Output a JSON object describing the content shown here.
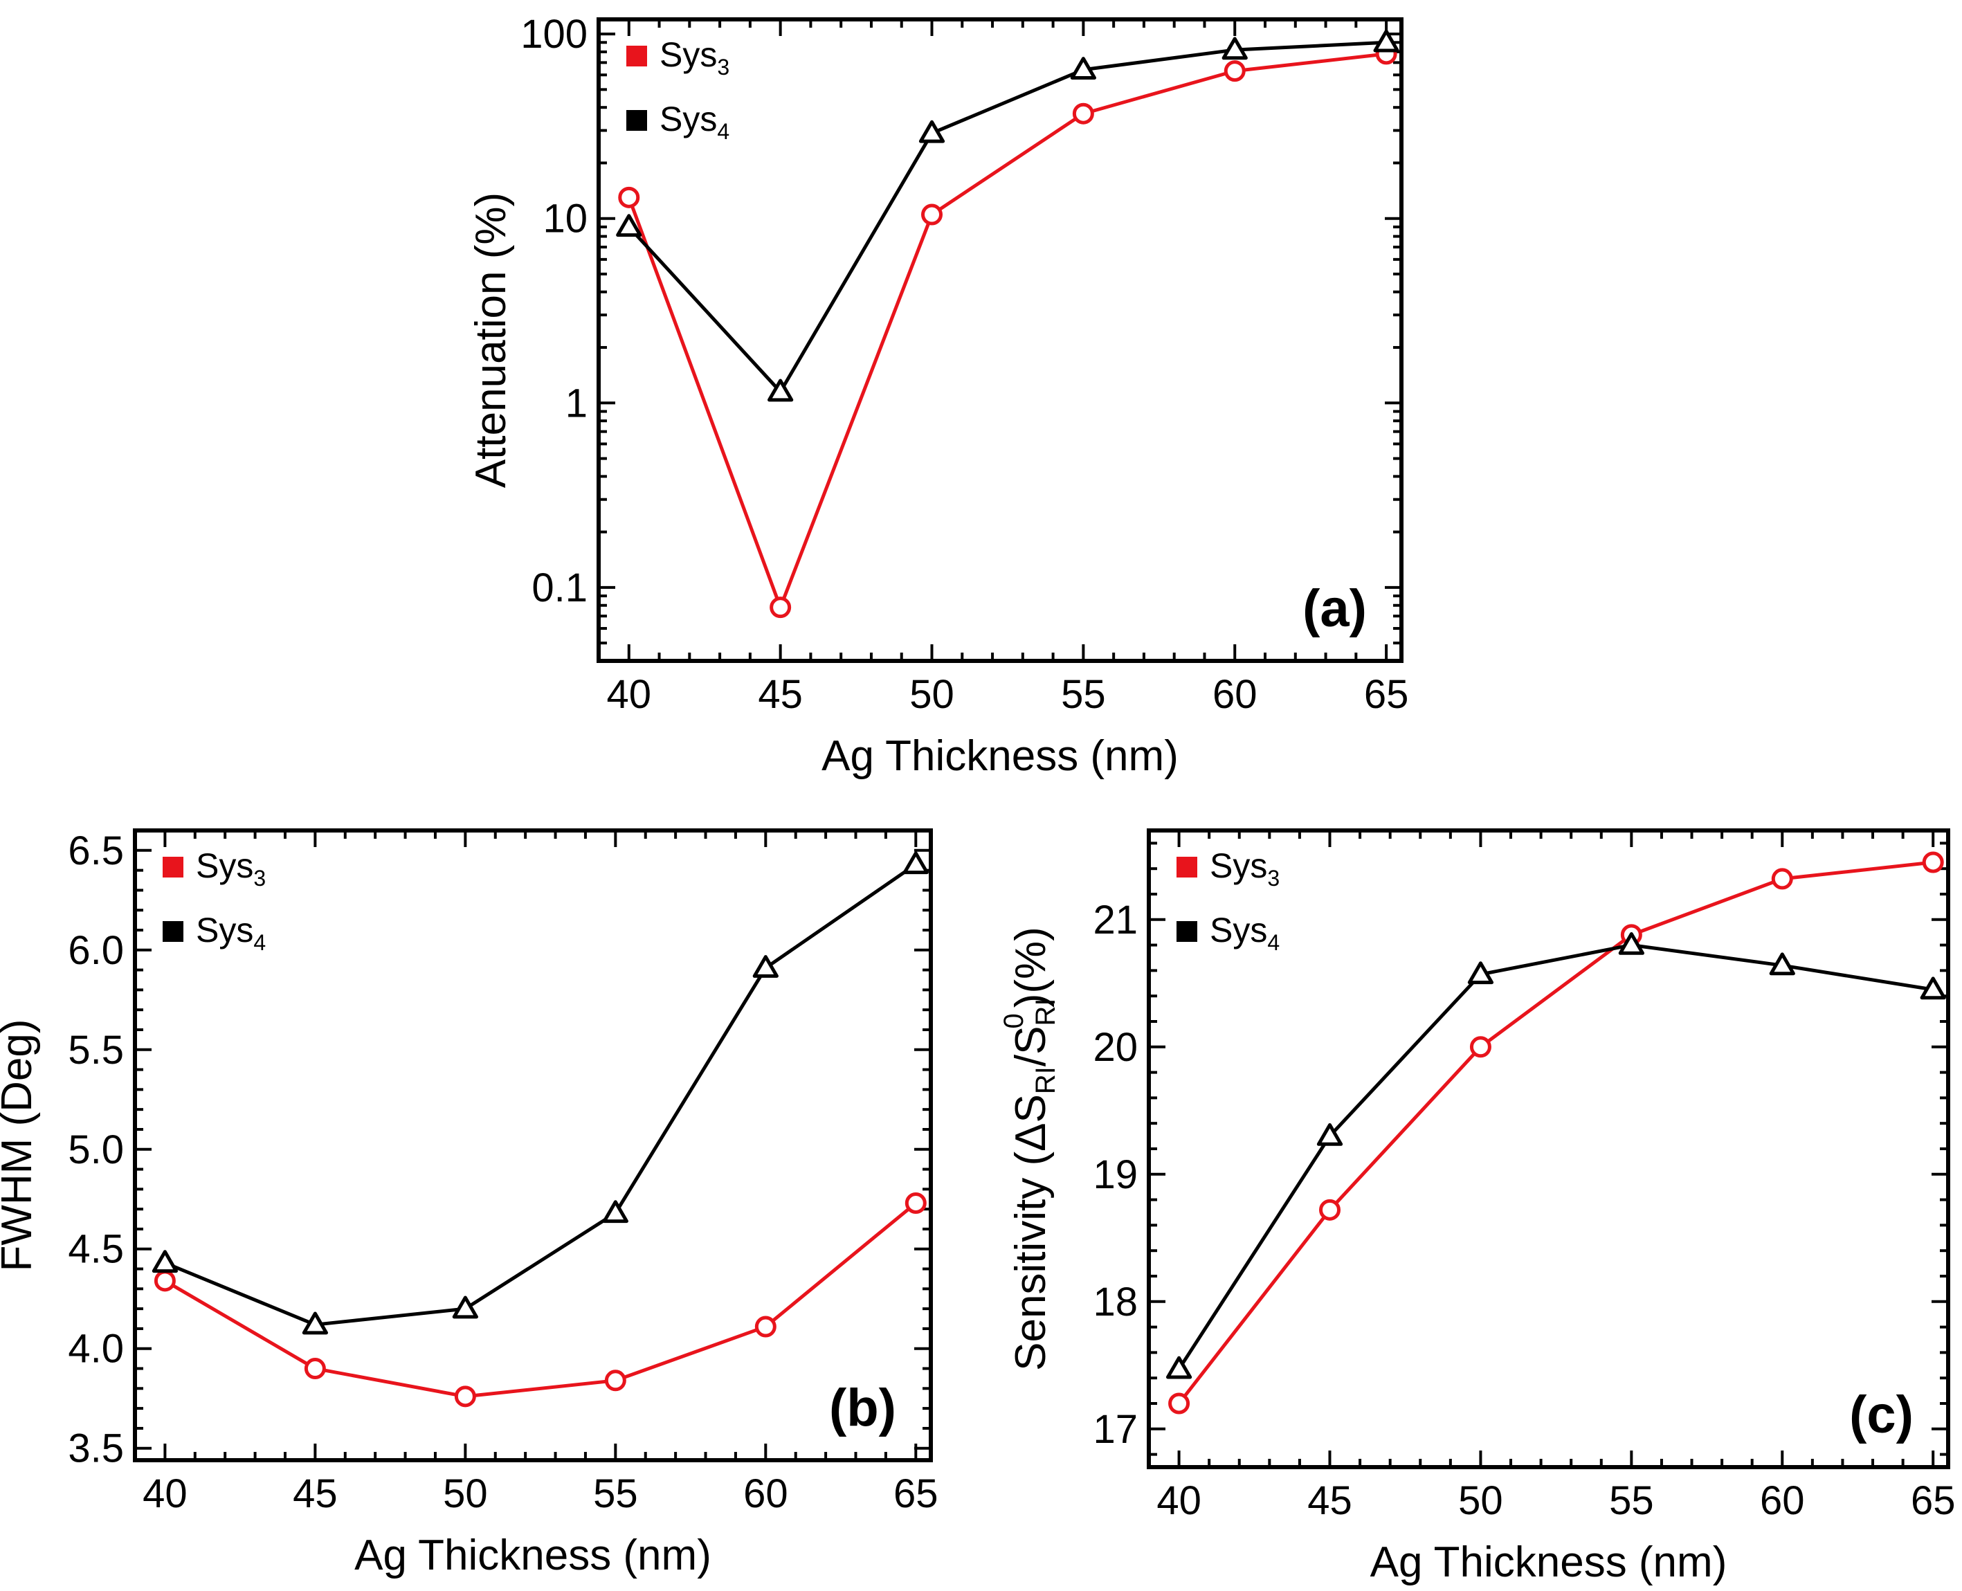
{
  "chart_data": [
    {
      "panel": "(a)",
      "type": "line",
      "xlabel": "Ag Thickness (nm)",
      "ylabel": "Attenuation (%)",
      "yscale": "log",
      "x": [
        40,
        45,
        50,
        55,
        60,
        65
      ],
      "xlim": [
        39,
        65.5
      ],
      "ylim": [
        0.04,
        120
      ],
      "xticks": [
        "40",
        "45",
        "50",
        "55",
        "60",
        "65"
      ],
      "yticks": [
        {
          "value": 0.1,
          "label": "0.1"
        },
        {
          "value": 1,
          "label": "1"
        },
        {
          "value": 10,
          "label": "10"
        },
        {
          "value": 100,
          "label": "100"
        }
      ],
      "legend_position": "top-left",
      "series": [
        {
          "name": "Sys",
          "sub": "3",
          "color": "#e8141c",
          "marker": "circle",
          "values": [
            13,
            0.078,
            10.5,
            37,
            63,
            78
          ]
        },
        {
          "name": "Sys",
          "sub": "4",
          "color": "#000000",
          "marker": "triangle",
          "values": [
            9,
            1.15,
            29,
            64,
            82,
            90
          ]
        }
      ]
    },
    {
      "panel": "(b)",
      "type": "line",
      "xlabel": "Ag Thickness (nm)",
      "ylabel": "FWHM (Deg)",
      "yscale": "linear",
      "x": [
        40,
        45,
        50,
        55,
        60,
        65
      ],
      "xlim": [
        39,
        65.5
      ],
      "ylim": [
        3.44,
        6.6
      ],
      "xticks": [
        "40",
        "45",
        "50",
        "55",
        "60",
        "65"
      ],
      "yticks": [
        {
          "value": 3.5,
          "label": "3.5"
        },
        {
          "value": 4.0,
          "label": "4.0"
        },
        {
          "value": 4.5,
          "label": "4.5"
        },
        {
          "value": 5.0,
          "label": "5.0"
        },
        {
          "value": 5.5,
          "label": "5.5"
        },
        {
          "value": 6.0,
          "label": "6.0"
        },
        {
          "value": 6.5,
          "label": "6.5"
        }
      ],
      "legend_position": "top-left",
      "series": [
        {
          "name": "Sys",
          "sub": "3",
          "color": "#e8141c",
          "marker": "circle",
          "values": [
            4.34,
            3.9,
            3.76,
            3.84,
            4.11,
            4.73
          ]
        },
        {
          "name": "Sys",
          "sub": "4",
          "color": "#000000",
          "marker": "triangle",
          "values": [
            4.43,
            4.12,
            4.2,
            4.68,
            5.91,
            6.43
          ]
        }
      ]
    },
    {
      "panel": "(c)",
      "type": "line",
      "xlabel": "Ag Thickness (nm)",
      "ylabel": "Sensitivity (ΔS",
      "ylabel_parts": [
        "Sensitivity (ΔS",
        "RI",
        "/S",
        "RI",
        "0",
        ")(%)"
      ],
      "yscale": "linear",
      "x": [
        40,
        45,
        50,
        55,
        60,
        65
      ],
      "xlim": [
        39,
        65.5
      ],
      "ylim": [
        16.7,
        21.7
      ],
      "xticks": [
        "40",
        "45",
        "50",
        "55",
        "60",
        "65"
      ],
      "yticks": [
        {
          "value": 17,
          "label": "17"
        },
        {
          "value": 18,
          "label": "18"
        },
        {
          "value": 19,
          "label": "19"
        },
        {
          "value": 20,
          "label": "20"
        },
        {
          "value": 21,
          "label": "21"
        }
      ],
      "legend_position": "top-left",
      "series": [
        {
          "name": "Sys",
          "sub": "3",
          "color": "#e8141c",
          "marker": "circle",
          "values": [
            17.2,
            18.72,
            20.0,
            20.88,
            21.32,
            21.45
          ]
        },
        {
          "name": "Sys",
          "sub": "4",
          "color": "#000000",
          "marker": "triangle",
          "values": [
            17.47,
            19.3,
            20.57,
            20.8,
            20.64,
            20.45
          ]
        }
      ]
    }
  ]
}
